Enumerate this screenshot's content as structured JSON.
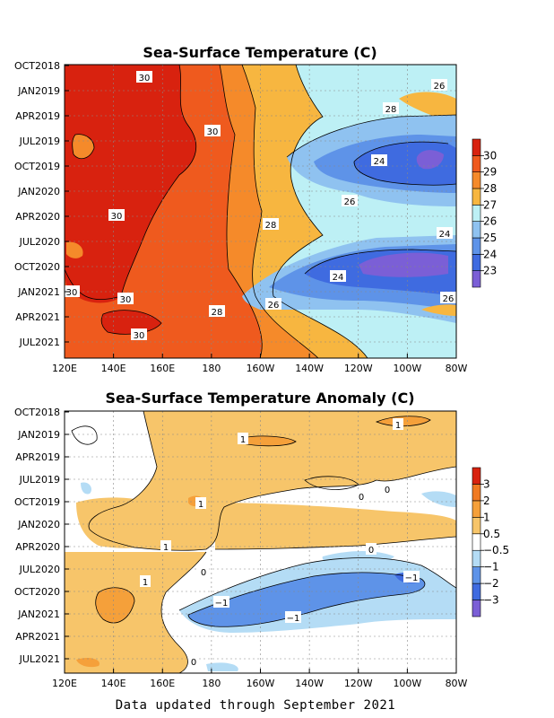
{
  "footer": "Data updated through September 2021",
  "chart_data": [
    {
      "type": "heatmap",
      "title": "Sea-Surface Temperature (C)",
      "xlabel": "",
      "ylabel": "",
      "x_ticks": [
        "120E",
        "140E",
        "160E",
        "180",
        "160W",
        "140W",
        "120W",
        "100W",
        "80W"
      ],
      "y_ticks": [
        "OCT2018",
        "JAN2019",
        "APR2019",
        "JUL2019",
        "OCT2019",
        "JAN2020",
        "APR2020",
        "JUL2020",
        "OCT2020",
        "JAN2021",
        "APR2021",
        "JUL2021"
      ],
      "grid": true,
      "colorbar": {
        "placement": "right",
        "levels": [
          "23",
          "24",
          "25",
          "26",
          "27",
          "28",
          "29",
          "30"
        ],
        "colors": [
          "#7b5fd6",
          "#3f6be0",
          "#5e93e8",
          "#8fc2f0",
          "#bdf0f5",
          "#f7b640",
          "#f58a2a",
          "#ef5a1e",
          "#d8220f"
        ]
      },
      "contour_labels": [
        "30",
        "30",
        "30",
        "30",
        "30",
        "30",
        "28",
        "28",
        "28",
        "26",
        "26",
        "26",
        "26",
        "24",
        "24",
        "24",
        "24",
        "26"
      ]
    },
    {
      "type": "heatmap",
      "title": "Sea-Surface Temperature Anomaly (C)",
      "xlabel": "",
      "ylabel": "",
      "x_ticks": [
        "120E",
        "140E",
        "160E",
        "180",
        "160W",
        "140W",
        "120W",
        "100W",
        "80W"
      ],
      "y_ticks": [
        "OCT2018",
        "JAN2019",
        "APR2019",
        "JUL2019",
        "OCT2019",
        "JAN2020",
        "APR2020",
        "JUL2020",
        "OCT2020",
        "JAN2021",
        "APR2021",
        "JUL2021"
      ],
      "grid": true,
      "colorbar": {
        "placement": "right",
        "levels": [
          "−3",
          "−2",
          "−1",
          "−0.5",
          "0.5",
          "1",
          "2",
          "3"
        ],
        "colors": [
          "#7b5fd6",
          "#3f6be0",
          "#5e93e8",
          "#b4dcf5",
          "#ffffff",
          "#f7c56a",
          "#f5a03a",
          "#f07a22",
          "#d8220f"
        ]
      },
      "contour_labels": [
        "1",
        "1",
        "1",
        "1",
        "1",
        "1",
        "0",
        "0",
        "0",
        "0",
        "0",
        "0",
        "−1",
        "−1",
        "−1"
      ]
    }
  ]
}
